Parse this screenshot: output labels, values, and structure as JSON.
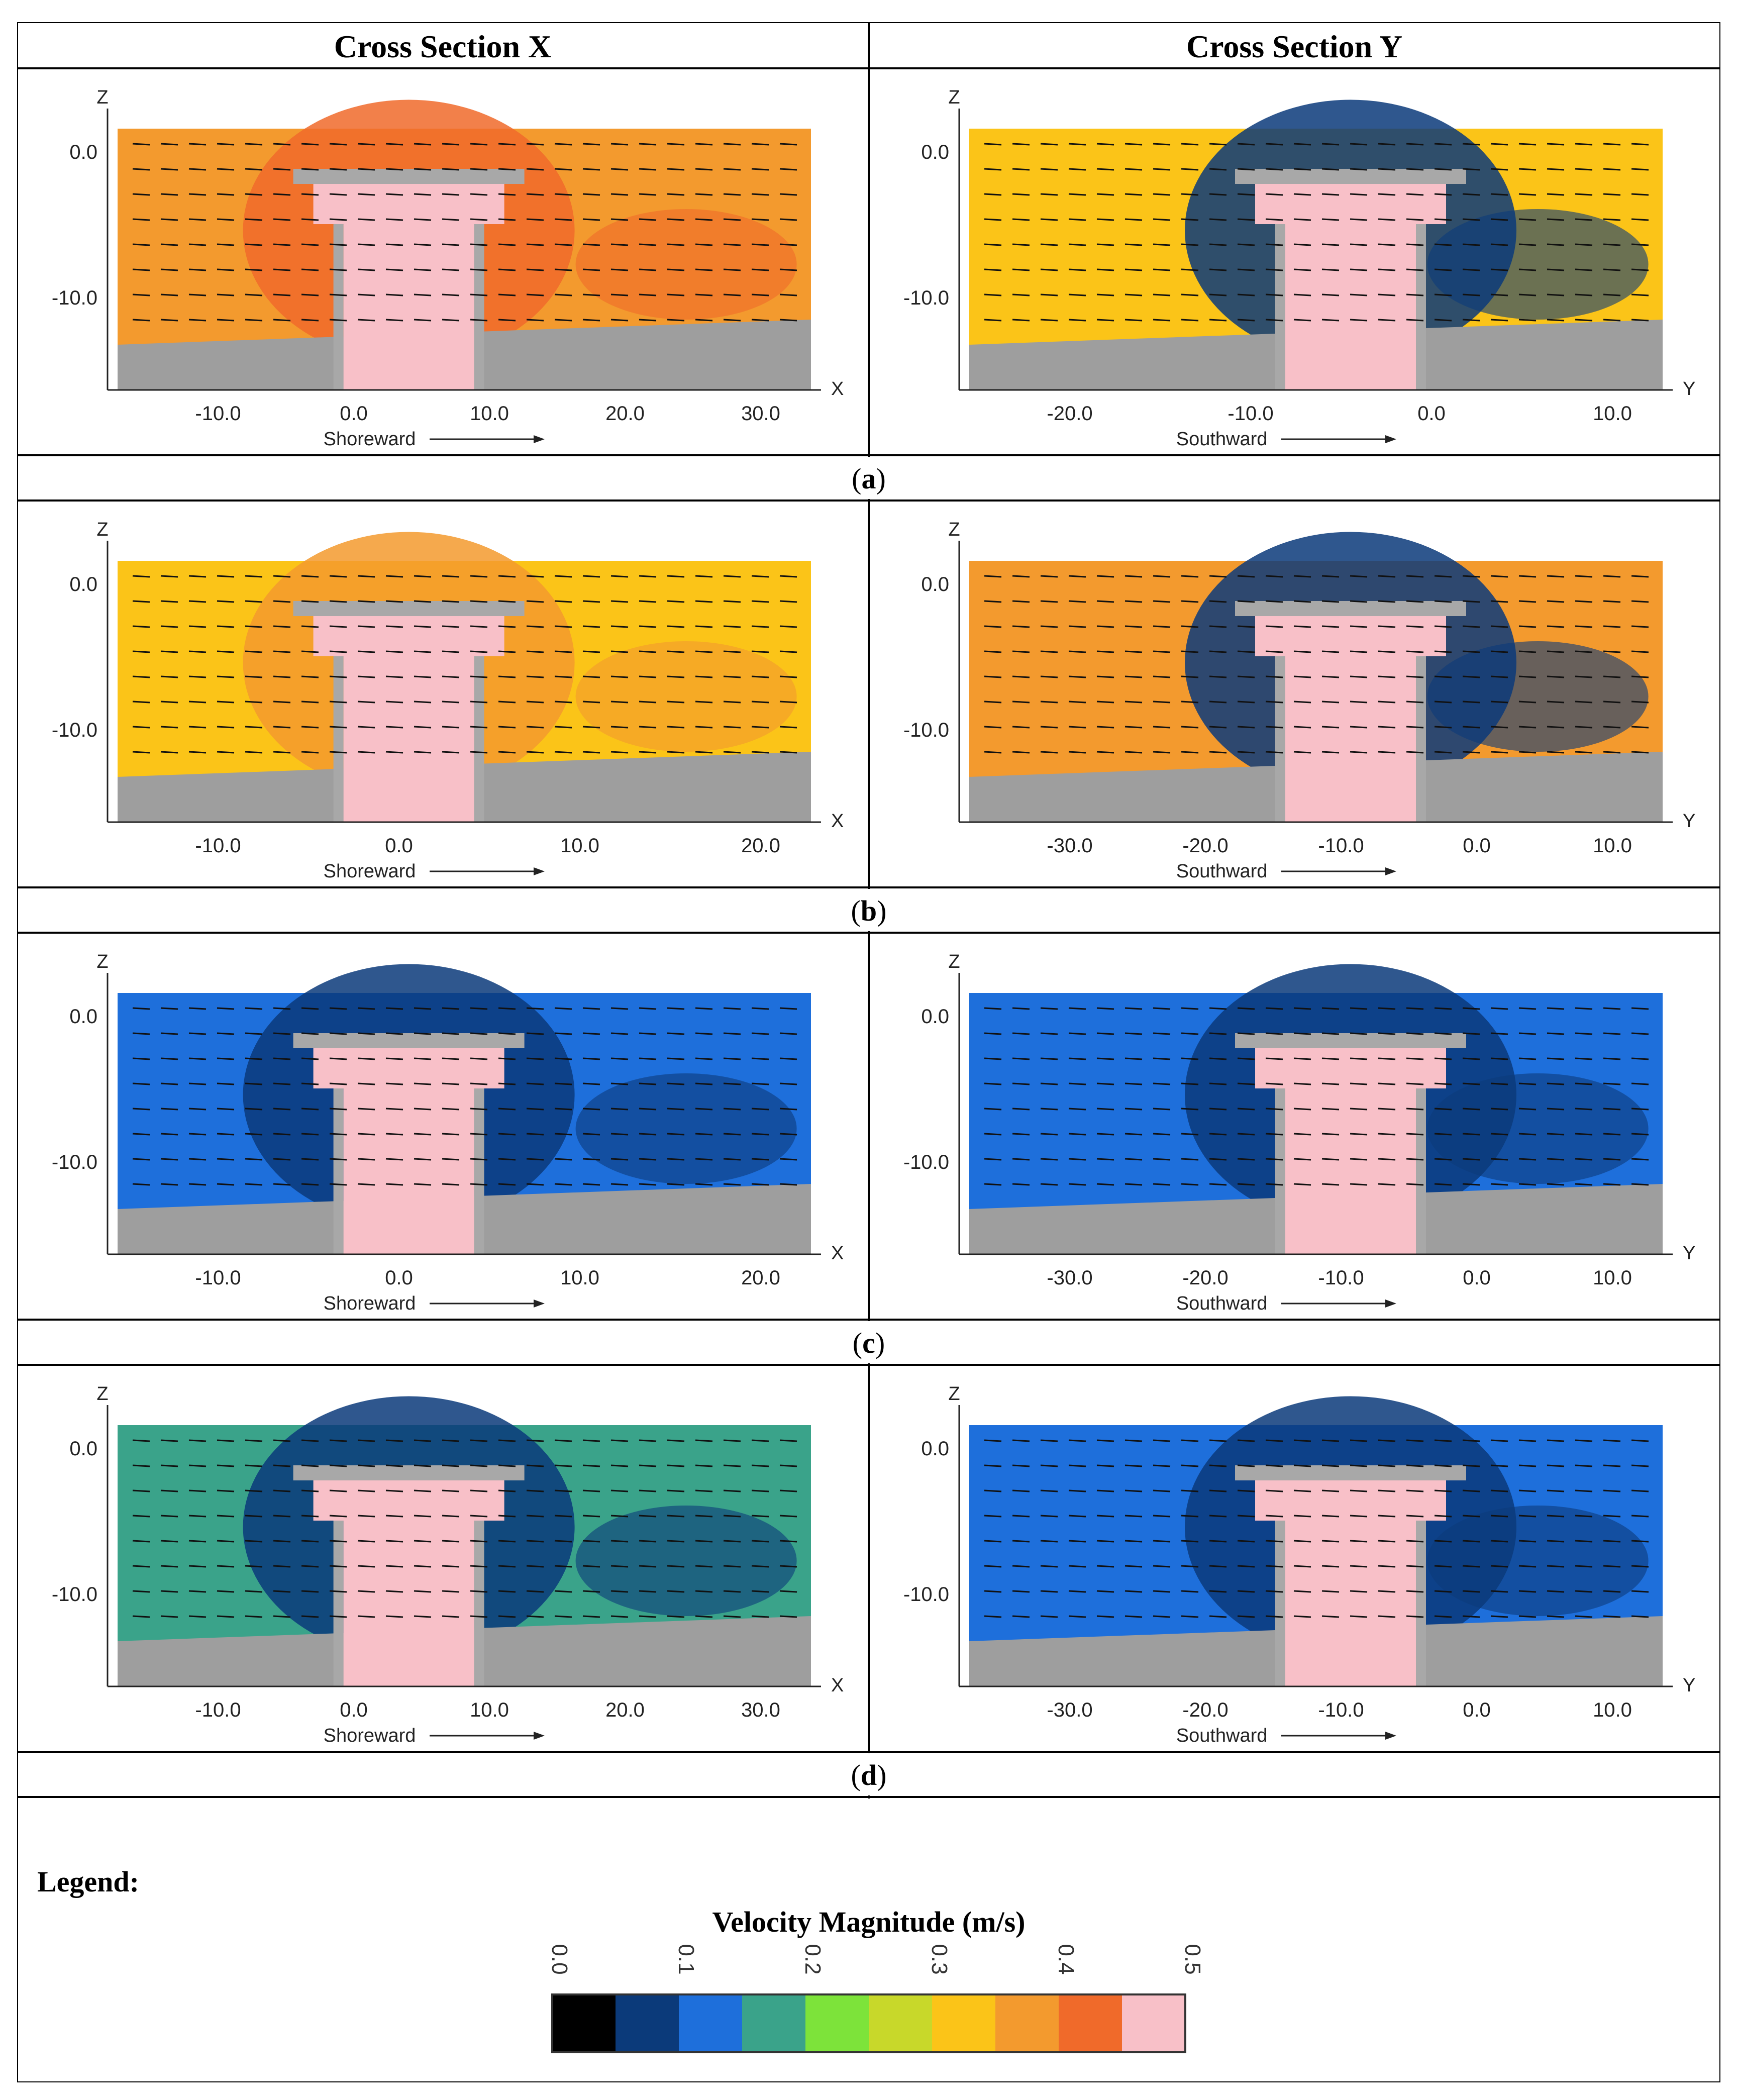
{
  "header": {
    "left": "Cross Section X",
    "right": "Cross Section Y"
  },
  "panels": [
    {
      "caption": "a",
      "left": {
        "bg": "#f39a2e",
        "wake": "#f06a2a",
        "xticks": [
          "-10.0",
          "0.0",
          "10.0",
          "20.0",
          "30.0"
        ],
        "zticks": [
          "0.0",
          "-10.0"
        ],
        "haxis": "X",
        "vaxis": "Z",
        "direction": "Shoreward"
      },
      "right": {
        "bg": "#fbc418",
        "wake": "#0b3a7a",
        "xticks": [
          "-20.0",
          "-10.0",
          "0.0",
          "10.0"
        ],
        "zticks": [
          "0.0",
          "-10.0"
        ],
        "haxis": "Y",
        "vaxis": "Z",
        "direction": "Southward"
      }
    },
    {
      "caption": "b",
      "left": {
        "bg": "#fbc418",
        "wake": "#f39a2e",
        "xticks": [
          "-10.0",
          "0.0",
          "10.0",
          "20.0"
        ],
        "zticks": [
          "0.0",
          "-10.0"
        ],
        "haxis": "X",
        "vaxis": "Z",
        "direction": "Shoreward"
      },
      "right": {
        "bg": "#f39a2e",
        "wake": "#0b3a7a",
        "xticks": [
          "-30.0",
          "-20.0",
          "-10.0",
          "0.0",
          "10.0"
        ],
        "zticks": [
          "0.0",
          "-10.0"
        ],
        "haxis": "Y",
        "vaxis": "Z",
        "direction": "Southward"
      }
    },
    {
      "caption": "c",
      "left": {
        "bg": "#1e6fdb",
        "wake": "#0b3a7a",
        "xticks": [
          "-10.0",
          "0.0",
          "10.0",
          "20.0"
        ],
        "zticks": [
          "0.0",
          "-10.0"
        ],
        "haxis": "X",
        "vaxis": "Z",
        "direction": "Shoreward"
      },
      "right": {
        "bg": "#1e6fdb",
        "wake": "#0b3a7a",
        "xticks": [
          "-30.0",
          "-20.0",
          "-10.0",
          "0.0",
          "10.0"
        ],
        "zticks": [
          "0.0",
          "-10.0"
        ],
        "haxis": "Y",
        "vaxis": "Z",
        "direction": "Southward"
      }
    },
    {
      "caption": "d",
      "left": {
        "bg": "#3aa38a",
        "wake": "#0b3a7a",
        "xticks": [
          "-10.0",
          "0.0",
          "10.0",
          "20.0",
          "30.0"
        ],
        "zticks": [
          "0.0",
          "-10.0"
        ],
        "haxis": "X",
        "vaxis": "Z",
        "direction": "Shoreward"
      },
      "right": {
        "bg": "#1e6fdb",
        "wake": "#0b3a7a",
        "xticks": [
          "-30.0",
          "-20.0",
          "-10.0",
          "0.0",
          "10.0"
        ],
        "zticks": [
          "0.0",
          "-10.0"
        ],
        "haxis": "Y",
        "vaxis": "Z",
        "direction": "Southward"
      }
    }
  ],
  "legend": {
    "label": "Legend:",
    "title": "Velocity Magnitude (m/s)",
    "ticks": [
      "0.0",
      "0.1",
      "0.2",
      "0.3",
      "0.4",
      "0.5"
    ],
    "colors": [
      "#000000",
      "#0b3a7a",
      "#1e6fdb",
      "#3aa38a",
      "#7de33a",
      "#c8d82a",
      "#fbc418",
      "#f39a2e",
      "#f06a2a",
      "#f8c0c8"
    ]
  },
  "colors": {
    "seabed": "#9e9e9e",
    "structure": "#a8a8a8",
    "core": "#f8c0c8"
  }
}
